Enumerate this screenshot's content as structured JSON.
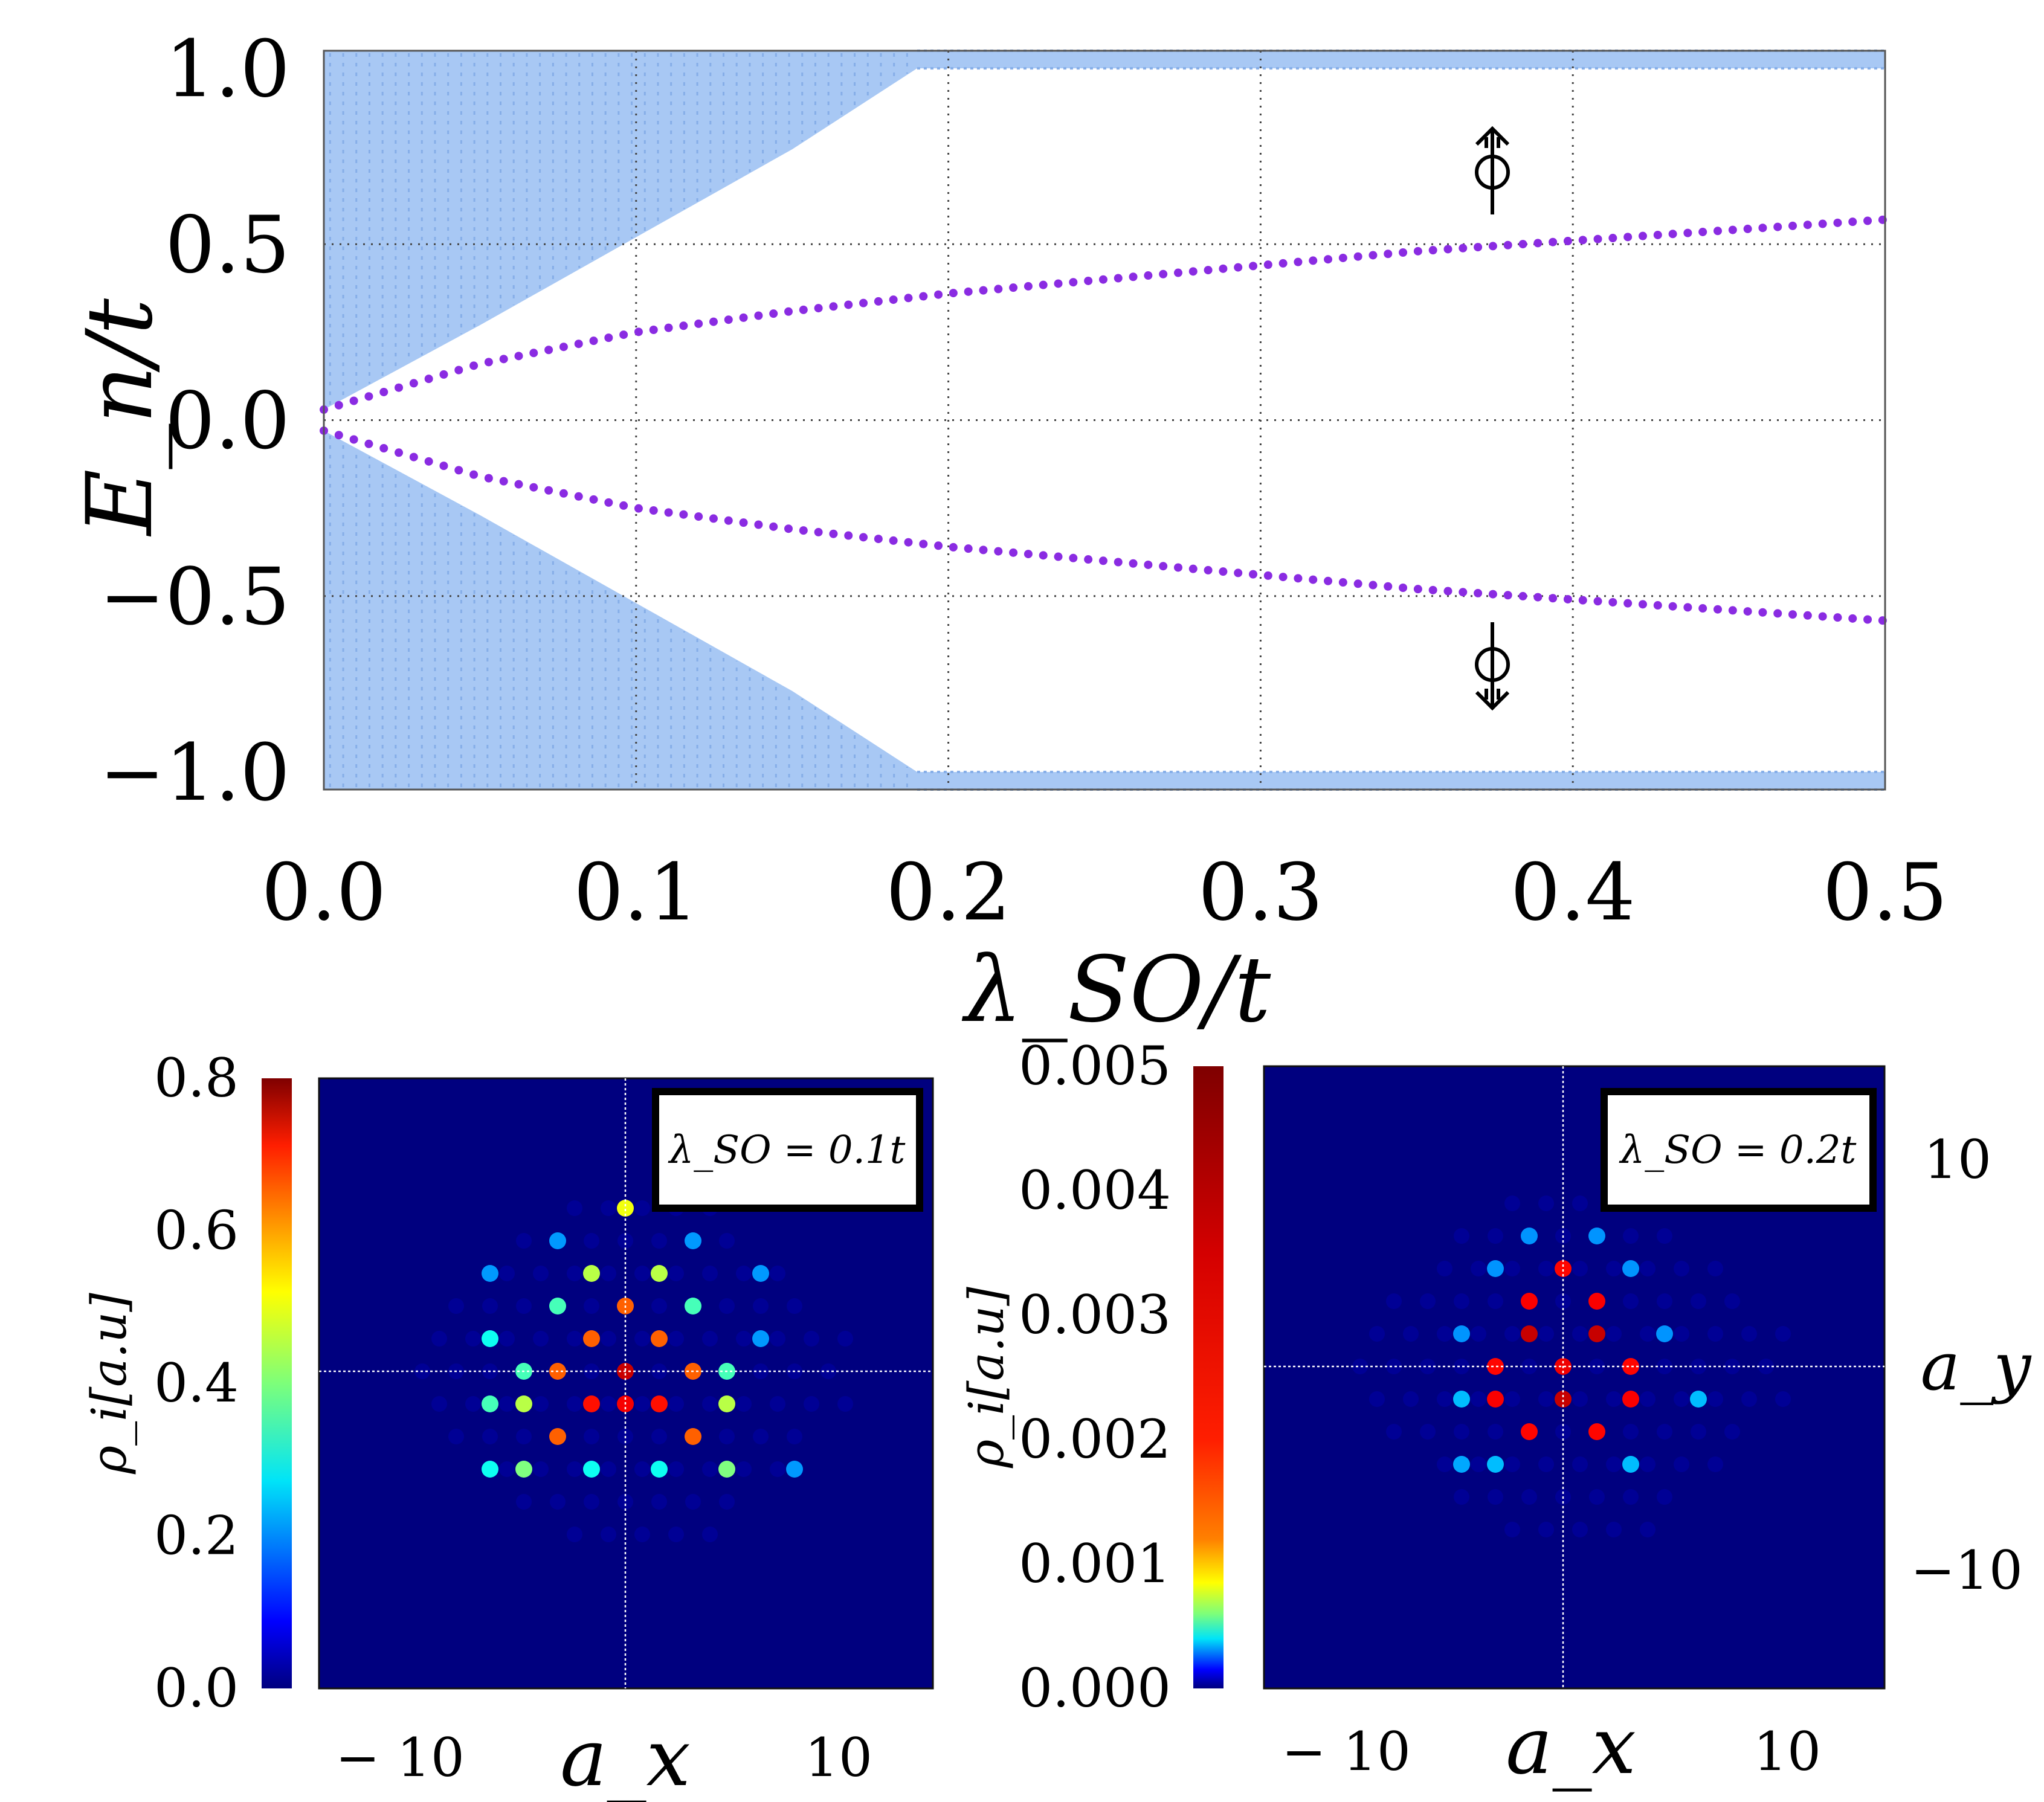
{
  "chart_data": [
    {
      "type": "scatter",
      "id": "spectrum",
      "xlabel": "λ_SO/t",
      "ylabel": "E_n/t",
      "xlim": [
        0.0,
        0.5
      ],
      "ylim": [
        -1.05,
        1.05
      ],
      "xticks": [
        "0.0",
        "0.1",
        "0.2",
        "0.3",
        "0.4",
        "0.5"
      ],
      "yticks": [
        "1.0",
        "0.5",
        "0.0",
        "−0.5",
        "−1.0"
      ],
      "grid": "dotted",
      "bulk": {
        "color": "#a8c8f4",
        "gap_edge": [
          [
            0.0,
            0.03
          ],
          [
            0.05,
            0.27
          ],
          [
            0.1,
            0.52
          ],
          [
            0.15,
            0.77
          ],
          [
            0.19,
            1.0
          ],
          [
            0.5,
            1.0
          ]
        ],
        "band_edge_range": [
          1.0,
          1.05
        ]
      },
      "series": [
        {
          "name": "edge state (spin up)",
          "color": "#8a2be2",
          "label": "⇑",
          "points": [
            [
              0.0,
              0.03
            ],
            [
              0.05,
              0.16
            ],
            [
              0.1,
              0.25
            ],
            [
              0.15,
              0.31
            ],
            [
              0.2,
              0.36
            ],
            [
              0.25,
              0.4
            ],
            [
              0.3,
              0.44
            ],
            [
              0.35,
              0.48
            ],
            [
              0.4,
              0.51
            ],
            [
              0.45,
              0.54
            ],
            [
              0.5,
              0.57
            ]
          ]
        },
        {
          "name": "edge state (spin down)",
          "color": "#8a2be2",
          "label": "⇓",
          "points": [
            [
              0.0,
              -0.03
            ],
            [
              0.05,
              -0.16
            ],
            [
              0.1,
              -0.25
            ],
            [
              0.15,
              -0.31
            ],
            [
              0.2,
              -0.36
            ],
            [
              0.25,
              -0.4
            ],
            [
              0.3,
              -0.44
            ],
            [
              0.35,
              -0.48
            ],
            [
              0.4,
              -0.51
            ],
            [
              0.45,
              -0.54
            ],
            [
              0.5,
              -0.57
            ]
          ]
        }
      ]
    },
    {
      "type": "heatmap",
      "id": "density_01",
      "annotation": "λ_SO = 0.1t",
      "xlabel": "a_x",
      "xticks": [
        "− 10",
        "10"
      ],
      "colorbar_label": "ρ_i[a.u]",
      "colorbar_ticks": [
        "0.8",
        "0.6",
        "0.4",
        "0.2",
        "0.0"
      ],
      "colorbar_range": [
        0.0,
        0.8
      ],
      "background_value": 0.0,
      "sites": [
        {
          "i": 0,
          "j": 5,
          "v": 0.5
        },
        {
          "i": -1,
          "j": 3,
          "v": 0.45
        },
        {
          "i": 1,
          "j": 3,
          "v": 0.45
        },
        {
          "i": -2,
          "j": 2,
          "v": 0.35
        },
        {
          "i": 0,
          "j": 2,
          "v": 0.65
        },
        {
          "i": 2,
          "j": 2,
          "v": 0.35
        },
        {
          "i": -1,
          "j": 1,
          "v": 0.65
        },
        {
          "i": 1,
          "j": 1,
          "v": 0.65
        },
        {
          "i": -2,
          "j": 0,
          "v": 0.65
        },
        {
          "i": 0,
          "j": 0,
          "v": 0.78
        },
        {
          "i": 2,
          "j": 0,
          "v": 0.65
        },
        {
          "i": -4,
          "j": -1,
          "v": 0.35
        },
        {
          "i": -3,
          "j": 0,
          "v": 0.35
        },
        {
          "i": 3,
          "j": 0,
          "v": 0.35
        },
        {
          "i": -3,
          "j": -1,
          "v": 0.45
        },
        {
          "i": -1,
          "j": -1,
          "v": 0.72
        },
        {
          "i": 1,
          "j": -1,
          "v": 0.72
        },
        {
          "i": 3,
          "j": -1,
          "v": 0.45
        },
        {
          "i": -2,
          "j": -2,
          "v": 0.65
        },
        {
          "i": 0,
          "j": -1,
          "v": 0.74
        },
        {
          "i": 2,
          "j": -2,
          "v": 0.65
        },
        {
          "i": -4,
          "j": -3,
          "v": 0.3
        },
        {
          "i": -3,
          "j": -3,
          "v": 0.4
        },
        {
          "i": -1,
          "j": -3,
          "v": 0.3
        },
        {
          "i": 1,
          "j": -3,
          "v": 0.3
        },
        {
          "i": 3,
          "j": -3,
          "v": 0.4
        },
        {
          "i": 5,
          "j": -3,
          "v": 0.2
        },
        {
          "i": -4,
          "j": 1,
          "v": 0.3
        },
        {
          "i": 4,
          "j": 1,
          "v": 0.2
        },
        {
          "i": -4,
          "j": 3,
          "v": 0.2
        },
        {
          "i": 4,
          "j": 3,
          "v": 0.2
        },
        {
          "i": -2,
          "j": 4,
          "v": 0.2
        },
        {
          "i": 2,
          "j": 4,
          "v": 0.2
        }
      ]
    },
    {
      "type": "heatmap",
      "id": "density_02",
      "annotation": "λ_SO = 0.2t",
      "xlabel": "a_x",
      "ylabel": "a_y",
      "xticks": [
        "− 10",
        "10"
      ],
      "yticks": [
        "10",
        "−10"
      ],
      "colorbar_label": "ρ_i[a.u]",
      "colorbar_ticks": [
        "0.005",
        "0.004",
        "0.003",
        "0.002",
        "0.001",
        "0.000"
      ],
      "colorbar_range": [
        0.0,
        0.005
      ],
      "background_value": 0.0,
      "sites": [
        {
          "i": 0,
          "j": 3,
          "v": 0.0042
        },
        {
          "i": -1,
          "j": 2,
          "v": 0.0043
        },
        {
          "i": 1,
          "j": 2,
          "v": 0.0043
        },
        {
          "i": -1,
          "j": 1,
          "v": 0.0048
        },
        {
          "i": 1,
          "j": 1,
          "v": 0.0048
        },
        {
          "i": -2,
          "j": 0,
          "v": 0.0042
        },
        {
          "i": 0,
          "j": 0,
          "v": 0.0044
        },
        {
          "i": 2,
          "j": 0,
          "v": 0.0042
        },
        {
          "i": -2,
          "j": -1,
          "v": 0.0043
        },
        {
          "i": 0,
          "j": -1,
          "v": 0.0048
        },
        {
          "i": 2,
          "j": -1,
          "v": 0.0043
        },
        {
          "i": -1,
          "j": -2,
          "v": 0.0042
        },
        {
          "i": 1,
          "j": -2,
          "v": 0.0042
        },
        {
          "i": -3,
          "j": -1,
          "v": 0.0008
        },
        {
          "i": 4,
          "j": -1,
          "v": 0.0008
        },
        {
          "i": -3,
          "j": -3,
          "v": 0.0007
        },
        {
          "i": -2,
          "j": -3,
          "v": 0.0008
        },
        {
          "i": 2,
          "j": -3,
          "v": 0.0008
        },
        {
          "i": -3,
          "j": 1,
          "v": 0.0006
        },
        {
          "i": 3,
          "j": 1,
          "v": 0.0006
        },
        {
          "i": -2,
          "j": 3,
          "v": 0.0006
        },
        {
          "i": 2,
          "j": 3,
          "v": 0.0006
        },
        {
          "i": -1,
          "j": 4,
          "v": 0.0006
        },
        {
          "i": 1,
          "j": 4,
          "v": 0.0006
        }
      ]
    }
  ]
}
